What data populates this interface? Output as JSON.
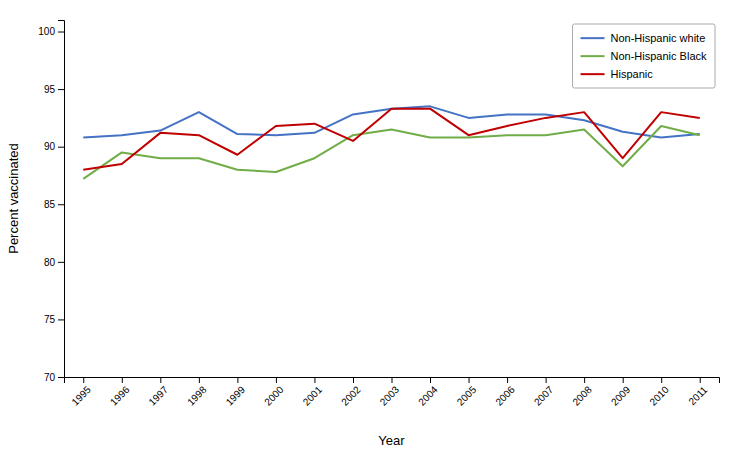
{
  "chart_data": {
    "type": "line",
    "xlabel": "Year",
    "ylabel": "Percent vaccinated",
    "x": [
      1995,
      1996,
      1997,
      1998,
      1999,
      2000,
      2001,
      2002,
      2003,
      2004,
      2005,
      2006,
      2007,
      2008,
      2009,
      2010,
      2011
    ],
    "series": [
      {
        "name": "Non-Hispanic white",
        "color": "#4472C4",
        "values": [
          90.8,
          91.0,
          91.4,
          93.0,
          91.1,
          91.0,
          91.2,
          92.8,
          93.3,
          93.5,
          92.5,
          92.8,
          92.8,
          92.3,
          91.3,
          90.8,
          91.1
        ]
      },
      {
        "name": "Non-Hispanic Black",
        "color": "#70AD47",
        "values": [
          87.2,
          89.5,
          89.0,
          89.0,
          88.0,
          87.8,
          89.0,
          91.0,
          91.5,
          90.8,
          90.8,
          91.0,
          91.0,
          91.5,
          88.3,
          91.8,
          91.0
        ]
      },
      {
        "name": "Hispanic",
        "color": "#C00000",
        "values": [
          88.0,
          88.5,
          91.2,
          91.0,
          89.3,
          91.8,
          92.0,
          90.5,
          93.3,
          93.3,
          91.0,
          91.8,
          92.5,
          93.0,
          89.0,
          93.0,
          92.5
        ]
      }
    ],
    "xlim": [
      1994.5,
      2011.5
    ],
    "xticks": [
      1995,
      1996,
      1997,
      1998,
      1999,
      2000,
      2001,
      2002,
      2003,
      2004,
      2005,
      2006,
      2007,
      2008,
      2009,
      2010,
      2011
    ],
    "ylim": [
      70,
      101
    ],
    "yticks": [
      70,
      75,
      80,
      85,
      90,
      95,
      100
    ],
    "grid": false,
    "legend": "upper right"
  }
}
